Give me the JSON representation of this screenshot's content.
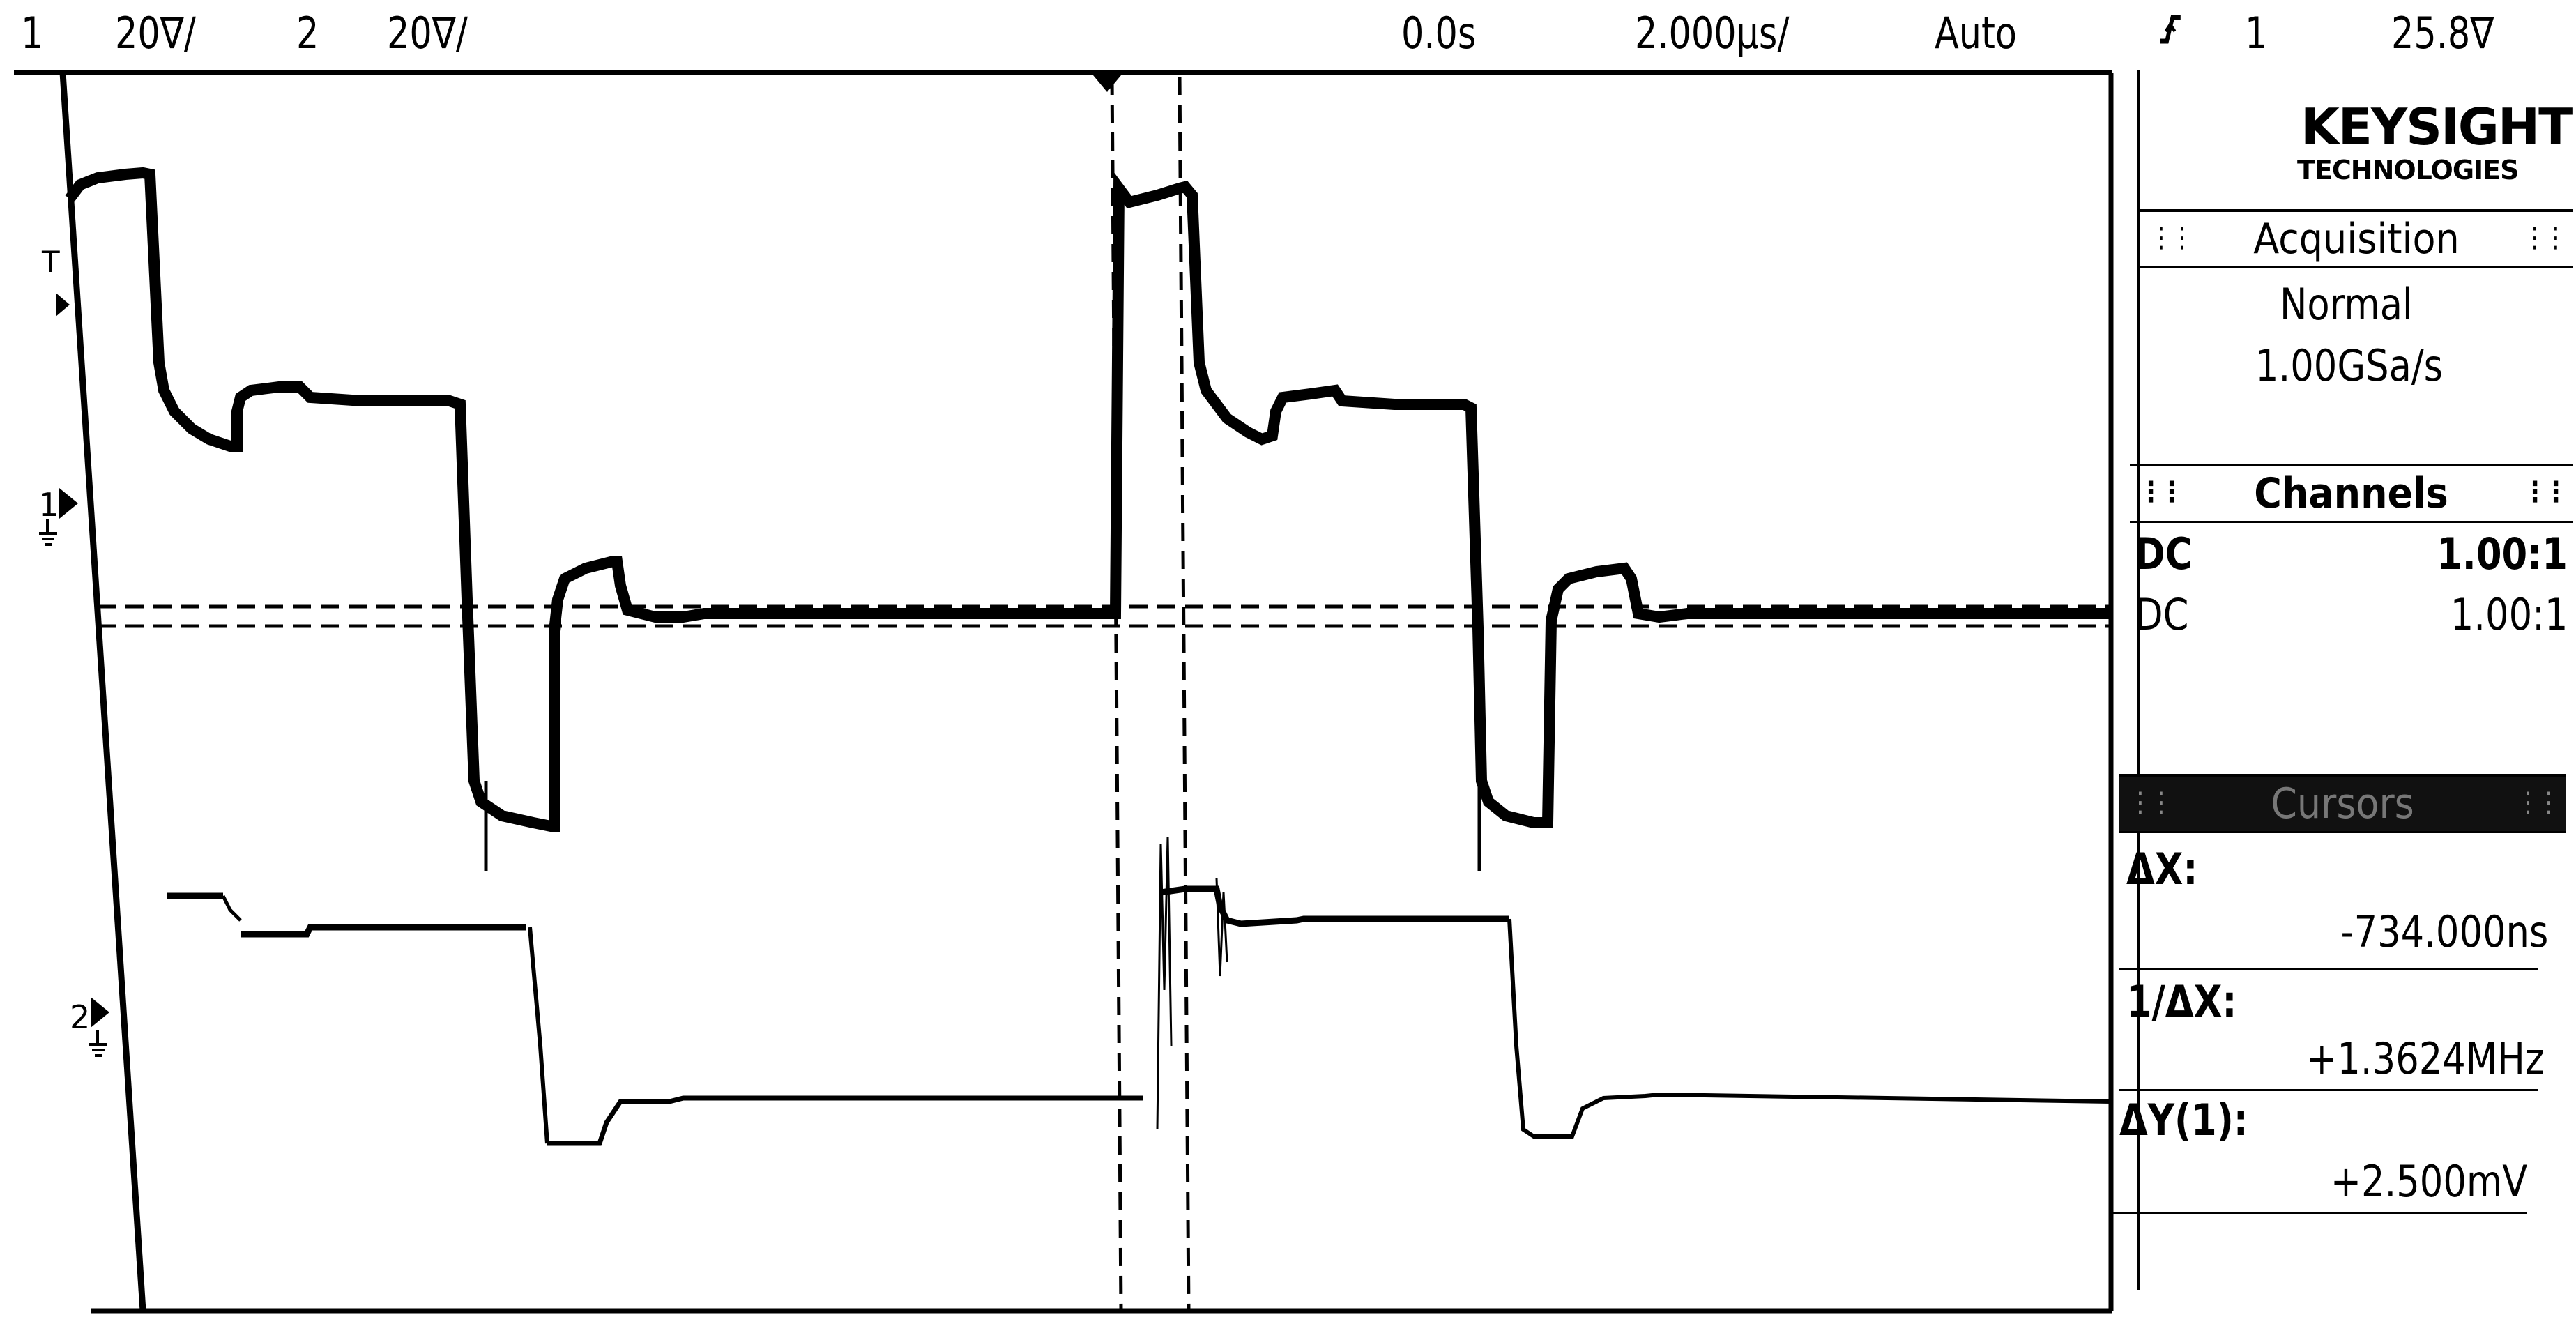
{
  "topbar": {
    "ch1_label": "1",
    "ch1_scale": "20∇/",
    "ch2_label": "2",
    "ch2_scale": "20∇/",
    "time_offset": "0.0s",
    "timebase": "2.000µs/",
    "trigger_mode": "Auto",
    "trigger_edge_icon": "rising-edge-trigger-icon",
    "trigger_source": "1",
    "trigger_level": "25.8∇"
  },
  "brand": {
    "name": "KEYSIGHT",
    "sub": "TECHNOLOGIES"
  },
  "acquisition": {
    "title": "Acquisition",
    "mode": "Normal",
    "rate": "1.00GSa/s"
  },
  "channels": {
    "title": "Channels",
    "rows": [
      {
        "coupling": "DC",
        "probe": "1.00:1"
      },
      {
        "coupling": "DC",
        "probe": "1.00:1"
      }
    ]
  },
  "cursors": {
    "title": "Cursors",
    "dx_label": "ΔX:",
    "dx_value": "-734.000ns",
    "inv_dx_label": "1/ΔX:",
    "inv_dx_value": "+1.3624MHz",
    "dy_label": "ΔY(1):",
    "dy_value": "+2.500mV"
  },
  "markers": {
    "trigger_marker": "T",
    "ch1_ground": "1",
    "ch2_ground": "2"
  },
  "colors": {
    "background": "#ffffff",
    "trace": "#000000",
    "header_dark": "#111111"
  }
}
